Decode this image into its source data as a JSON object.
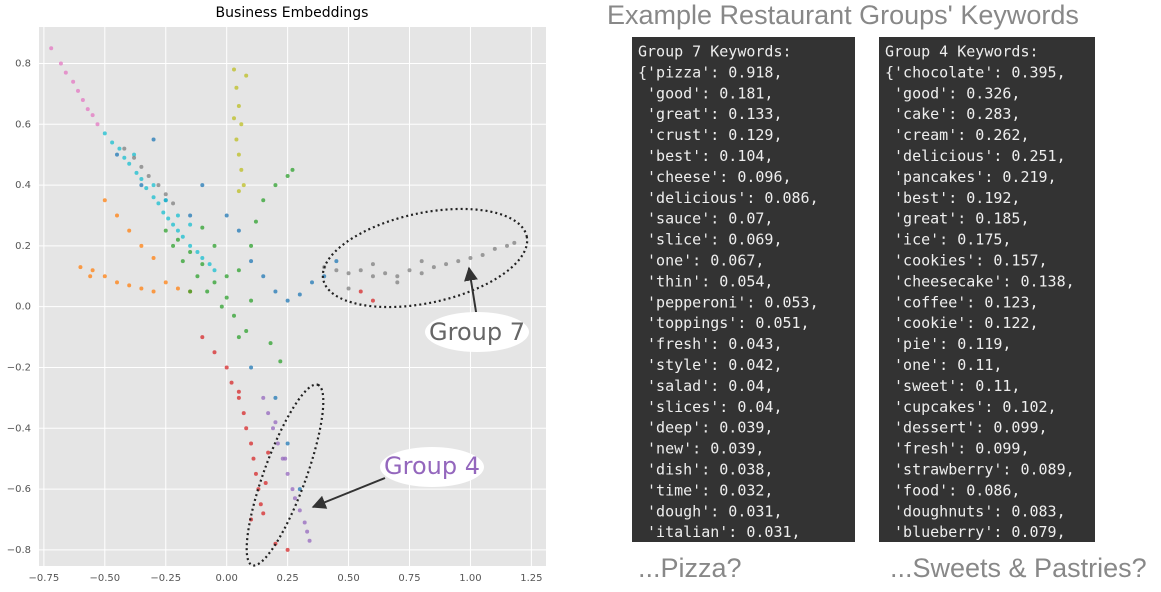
{
  "heading": "Example Restaurant Groups' Keywords",
  "chart_data": {
    "type": "scatter",
    "title": "Business Embeddings",
    "xlim": [
      -0.77,
      1.31
    ],
    "ylim": [
      -0.853,
      0.92
    ],
    "xticks": [
      {
        "value": -0.75,
        "label": "−0.75"
      },
      {
        "value": -0.5,
        "label": "−0.50"
      },
      {
        "value": -0.25,
        "label": "−0.25"
      },
      {
        "value": 0,
        "label": "0.00"
      },
      0.25,
      {
        "value": 0.5,
        "label": "0.50"
      },
      {
        "value": 0.75,
        "label": "0.75"
      },
      {
        "value": 1,
        "label": "1.00"
      },
      {
        "value": 1.25,
        "label": "1.25"
      }
    ],
    "yticks": [
      {
        "value": -0.8,
        "label": "−0.8"
      },
      {
        "value": -0.6,
        "label": "−0.6"
      },
      {
        "value": -0.4,
        "label": "−0.4"
      },
      {
        "value": -0.2,
        "label": "−0.2"
      },
      {
        "value": 0,
        "label": "0.0"
      },
      0.2,
      0.4,
      0.6,
      0.8
    ],
    "grid": true,
    "series": [
      {
        "color": "#e377c2",
        "x": [
          -0.72,
          -0.68,
          -0.66,
          -0.63,
          -0.61,
          -0.59,
          -0.57,
          -0.55,
          -0.53
        ],
        "y": [
          0.85,
          0.8,
          0.77,
          0.74,
          0.71,
          0.68,
          0.65,
          0.63,
          0.6
        ]
      },
      {
        "color": "#ff7f0e",
        "x": [
          -0.55,
          -0.5,
          -0.45,
          -0.4,
          -0.35,
          -0.3,
          -0.25,
          -0.2,
          -0.15,
          -0.5,
          -0.45,
          -0.4,
          -0.35,
          -0.3,
          -0.6,
          -0.56
        ],
        "y": [
          0.12,
          0.1,
          0.08,
          0.07,
          0.06,
          0.05,
          0.08,
          0.06,
          0.05,
          0.35,
          0.3,
          0.25,
          0.2,
          0.16,
          0.13,
          0.1
        ]
      },
      {
        "color": "#1f77b4",
        "x": [
          -0.45,
          -0.35,
          -0.25,
          -0.15,
          0.05,
          0.1,
          0.15,
          0.2,
          0.25,
          0.3,
          0.35,
          0.4,
          0.45,
          -0.3,
          -0.1,
          0.1,
          0.2,
          0.25,
          0.3,
          0.0
        ],
        "y": [
          0.5,
          0.4,
          0.35,
          0.3,
          0.25,
          0.15,
          0.1,
          0.05,
          0.02,
          0.04,
          0.08,
          0.1,
          0.15,
          0.55,
          0.4,
          -0.2,
          -0.3,
          -0.45,
          -0.6,
          0.3
        ]
      },
      {
        "color": "#17becf",
        "x": [
          -0.5,
          -0.47,
          -0.44,
          -0.42,
          -0.4,
          -0.37,
          -0.35,
          -0.33,
          -0.3,
          -0.28,
          -0.26,
          -0.24,
          -0.22,
          -0.2,
          -0.18,
          -0.15,
          -0.12,
          -0.1,
          -0.07,
          -0.05,
          -0.3,
          -0.25,
          -0.2,
          -0.15,
          -0.38
        ],
        "y": [
          0.57,
          0.54,
          0.52,
          0.49,
          0.47,
          0.44,
          0.42,
          0.39,
          0.36,
          0.34,
          0.31,
          0.29,
          0.27,
          0.25,
          0.23,
          0.2,
          0.18,
          0.16,
          0.14,
          0.12,
          0.4,
          0.35,
          0.3,
          0.27,
          0.5
        ]
      },
      {
        "color": "#7f7f7f",
        "x": [
          -0.42,
          -0.38,
          -0.35,
          -0.32,
          -0.28,
          -0.25,
          -0.22,
          0.4,
          0.45,
          0.5,
          0.55,
          0.6,
          0.65,
          0.7,
          0.75,
          0.8,
          0.85,
          0.9,
          0.95,
          1.0,
          1.05,
          1.1,
          1.15,
          1.18,
          0.6,
          0.7,
          0.8,
          0.5
        ],
        "y": [
          0.52,
          0.49,
          0.46,
          0.43,
          0.4,
          0.37,
          0.34,
          0.13,
          0.12,
          0.11,
          0.12,
          0.1,
          0.11,
          0.1,
          0.12,
          0.11,
          0.13,
          0.14,
          0.15,
          0.16,
          0.17,
          0.19,
          0.2,
          0.21,
          0.14,
          0.08,
          0.15,
          0.06
        ]
      },
      {
        "color": "#bcbd22",
        "x": [
          0.03,
          0.04,
          0.05,
          0.06,
          0.04,
          0.05,
          0.06,
          0.07,
          0.05,
          0.03,
          0.08
        ],
        "y": [
          0.78,
          0.72,
          0.66,
          0.6,
          0.55,
          0.5,
          0.45,
          0.4,
          0.38,
          0.62,
          0.76
        ]
      },
      {
        "color": "#2ca02c",
        "x": [
          -0.25,
          -0.22,
          -0.2,
          -0.18,
          -0.15,
          -0.12,
          -0.1,
          -0.08,
          -0.05,
          -0.02,
          0,
          0.03,
          0.05,
          0.08,
          0.1,
          0.12,
          0.15,
          0.18,
          0.2,
          0.22,
          0.25,
          0.27,
          -0.1,
          -0.05,
          0,
          0.05,
          -0.15,
          0.1
        ],
        "y": [
          0.25,
          0.2,
          0.22,
          0.15,
          0.18,
          0.1,
          0.14,
          0.05,
          0.08,
          0,
          0.03,
          -0.03,
          0.12,
          -0.08,
          0.2,
          0.28,
          0.35,
          -0.12,
          0.4,
          -0.18,
          0.43,
          0.45,
          0.26,
          0.2,
          0.1,
          -0.1,
          0.05,
          0.02
        ]
      },
      {
        "color": "#d62728",
        "x": [
          -0.1,
          -0.05,
          0,
          0.02,
          0.05,
          0.07,
          0.08,
          0.1,
          0.11,
          0.12,
          0.13,
          0.14,
          0.15,
          0.16,
          0.17,
          0.1,
          0.05,
          0.2,
          0.25,
          0.55,
          0.6
        ],
        "y": [
          -0.1,
          -0.15,
          -0.2,
          -0.25,
          -0.3,
          -0.35,
          -0.4,
          -0.45,
          -0.5,
          -0.55,
          -0.6,
          -0.65,
          -0.68,
          -0.58,
          -0.48,
          -0.7,
          -0.28,
          -0.78,
          -0.8,
          0.05,
          0.02
        ]
      },
      {
        "color": "#9467bd",
        "x": [
          0.15,
          0.17,
          0.19,
          0.21,
          0.23,
          0.25,
          0.27,
          0.28,
          0.3,
          0.32,
          0.33,
          0.34,
          0.2,
          0.24
        ],
        "y": [
          -0.3,
          -0.35,
          -0.4,
          -0.45,
          -0.5,
          -0.55,
          -0.6,
          -0.63,
          -0.67,
          -0.71,
          -0.74,
          -0.77,
          -0.38,
          -0.5
        ]
      }
    ],
    "annotations": [
      {
        "text": "Group 7",
        "color": "#666666"
      },
      {
        "text": "Group 4",
        "color": "#9467bd"
      }
    ]
  },
  "panels": [
    {
      "lines": [
        "Group 7 Keywords:",
        "{'pizza': 0.918,",
        " 'good': 0.181,",
        " 'great': 0.133,",
        " 'crust': 0.129,",
        " 'best': 0.104,",
        " 'cheese': 0.096,",
        " 'delicious': 0.086,",
        " 'sauce': 0.07,",
        " 'slice': 0.069,",
        " 'one': 0.067,",
        " 'thin': 0.054,",
        " 'pepperoni': 0.053,",
        " 'toppings': 0.051,",
        " 'fresh': 0.043,",
        " 'style': 0.042,",
        " 'salad': 0.04,",
        " 'slices': 0.04,",
        " 'deep': 0.039,",
        " 'new': 0.039,",
        " 'dish': 0.038,",
        " 'time': 0.032,",
        " 'dough': 0.031,",
        " 'italian': 0.031,"
      ],
      "caption": "...Pizza?"
    },
    {
      "lines": [
        "Group 4 Keywords:",
        "{'chocolate': 0.395,",
        " 'good': 0.326,",
        " 'cake': 0.283,",
        " 'cream': 0.262,",
        " 'delicious': 0.251,",
        " 'pancakes': 0.219,",
        " 'best': 0.192,",
        " 'great': 0.185,",
        " 'ice': 0.175,",
        " 'cookies': 0.157,",
        " 'cheesecake': 0.138,",
        " 'coffee': 0.123,",
        " 'cookie': 0.122,",
        " 'pie': 0.119,",
        " 'one': 0.11,",
        " 'sweet': 0.11,",
        " 'cupcakes': 0.102,",
        " 'dessert': 0.099,",
        " 'fresh': 0.099,",
        " 'strawberry': 0.089,",
        " 'food': 0.086,",
        " 'doughnuts': 0.083,",
        " 'blueberry': 0.079,"
      ],
      "caption": "...Sweets & Pastries?"
    }
  ]
}
